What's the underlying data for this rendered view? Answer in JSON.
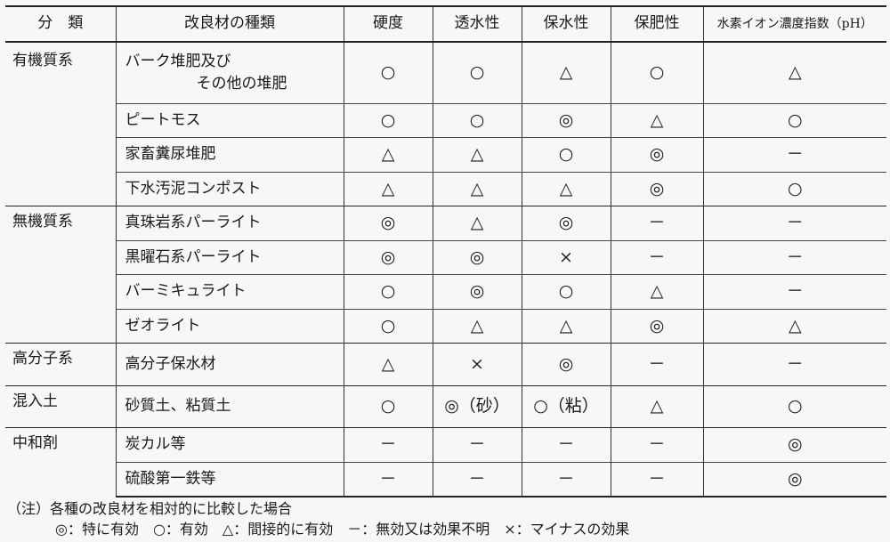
{
  "header": [
    "分　類",
    "改良材の種類",
    "硬度",
    "透水性",
    "保水性",
    "保肥性",
    "水素イオン濃度指数（pH）"
  ],
  "groups": [
    {
      "category": "有機質系",
      "rows": [
        {
          "name_lines": [
            "バーク堆肥及び",
            "その他の堆肥"
          ],
          "values": [
            "○",
            "○",
            "△",
            "○",
            "△"
          ]
        },
        {
          "name": "ピートモス",
          "values": [
            "○",
            "○",
            "◎",
            "△",
            "○"
          ]
        },
        {
          "name": "家畜糞尿堆肥",
          "values": [
            "△",
            "△",
            "○",
            "◎",
            "－"
          ]
        },
        {
          "name": "下水汚泥コンポスト",
          "values": [
            "△",
            "△",
            "△",
            "◎",
            "○"
          ]
        }
      ]
    },
    {
      "category": "無機質系",
      "rows": [
        {
          "name": "真珠岩系パーライト",
          "values": [
            "◎",
            "△",
            "◎",
            "－",
            "－"
          ]
        },
        {
          "name": "黒曜石系パーライト",
          "values": [
            "◎",
            "◎",
            "×",
            "－",
            "－"
          ]
        },
        {
          "name": "バーミキュライト",
          "values": [
            "○",
            "◎",
            "○",
            "△",
            "－"
          ]
        },
        {
          "name": "ゼオライト",
          "values": [
            "○",
            "△",
            "△",
            "◎",
            "△"
          ]
        }
      ]
    },
    {
      "category": "高分子系",
      "rows": [
        {
          "name": "高分子保水材",
          "values": [
            "△",
            "×",
            "◎",
            "－",
            "－"
          ]
        }
      ]
    },
    {
      "category": "混入土",
      "rows": [
        {
          "name": "砂質土、粘質土",
          "values": [
            "○",
            "◎（砂）",
            "○（粘）",
            "△",
            "○"
          ]
        }
      ]
    },
    {
      "category": "中和剤",
      "rows": [
        {
          "name": "炭カル等",
          "values": [
            "－",
            "－",
            "－",
            "－",
            "◎"
          ]
        },
        {
          "name": "硫酸第一鉄等",
          "values": [
            "－",
            "－",
            "－",
            "－",
            "◎"
          ]
        }
      ]
    }
  ],
  "notes": {
    "line1": "（注）各種の改良材を相対的に比較した場合",
    "line2": "◎：特に有効　○：有効　△：間接的に有効　－：無効又は効果不明　×：マイナスの効果"
  }
}
